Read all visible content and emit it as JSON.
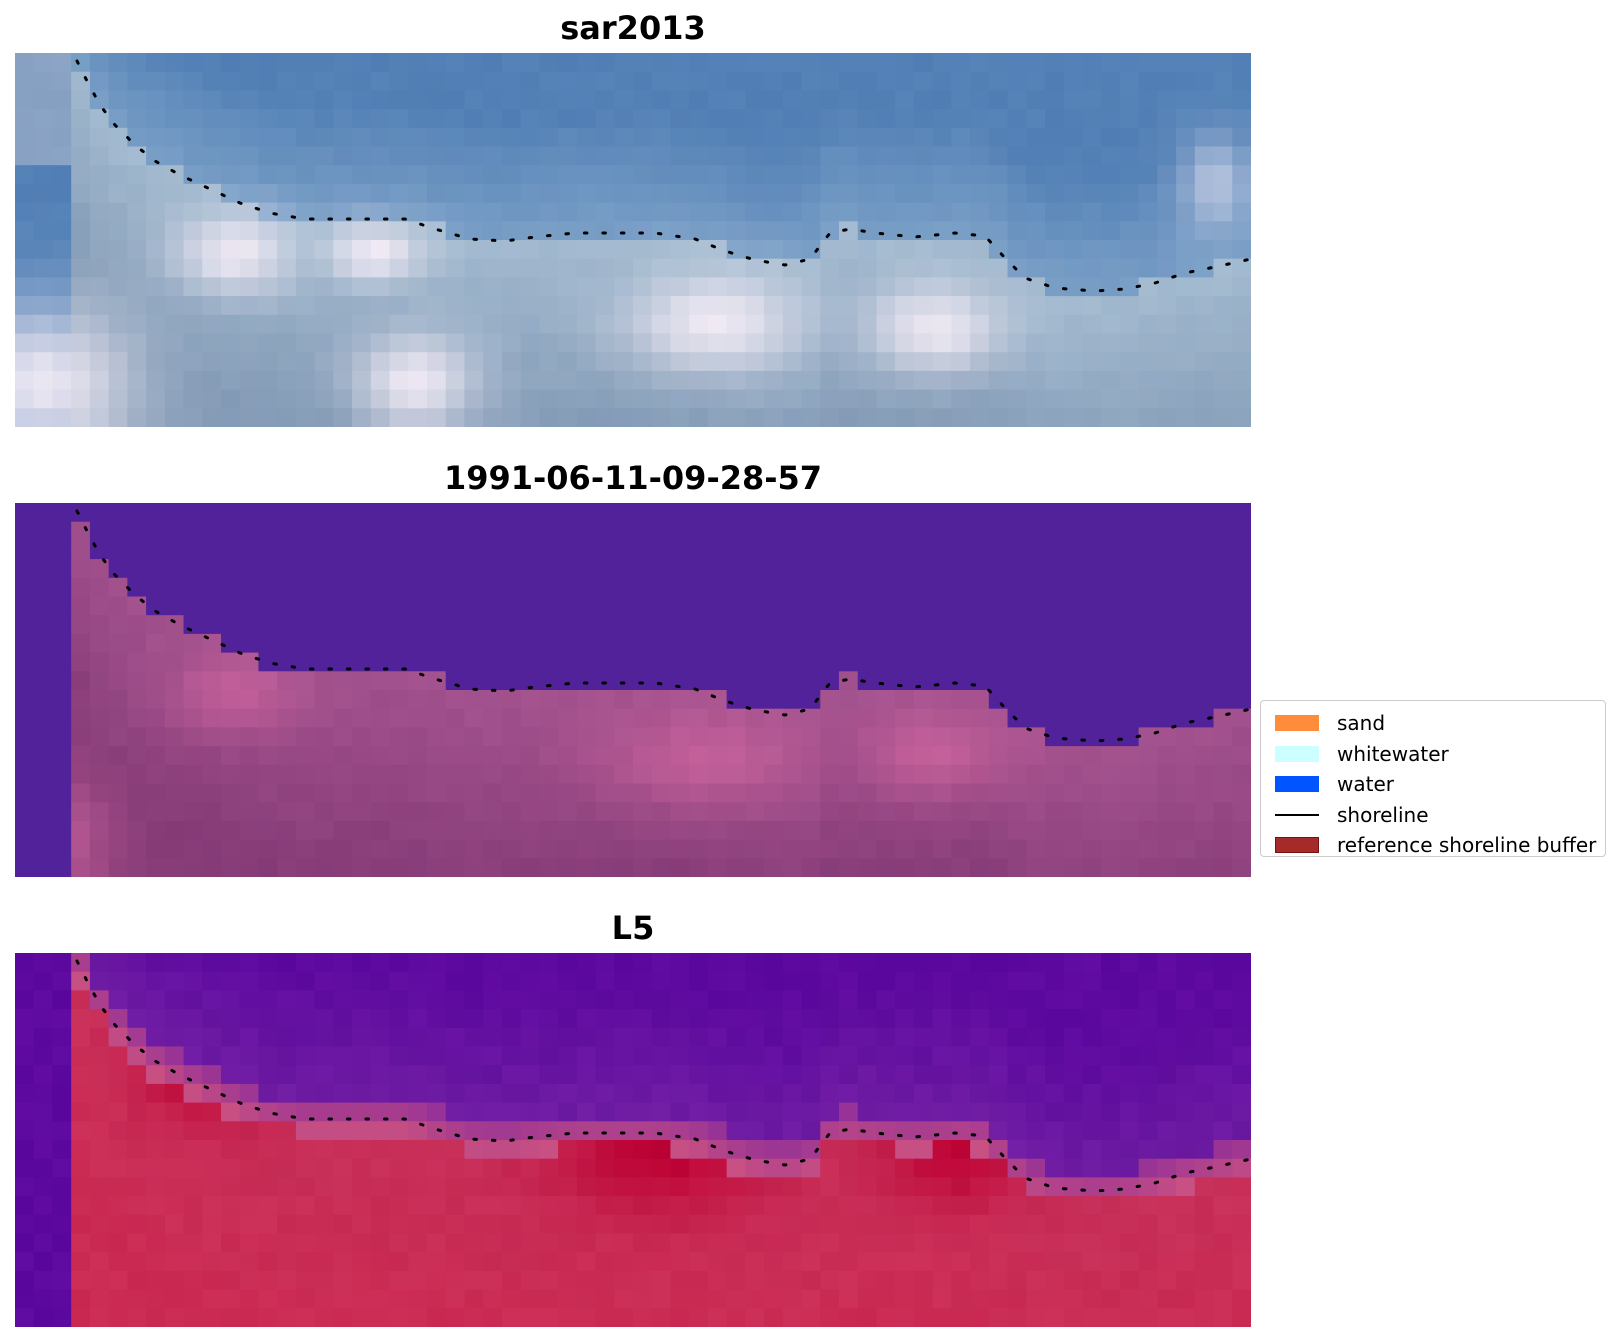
{
  "panels": [
    {
      "title": "sar2013",
      "colormap": "rgb"
    },
    {
      "title": "1991-06-11-09-28-57",
      "colormap": "classified"
    },
    {
      "title": "L5",
      "colormap": "index"
    }
  ],
  "legend": {
    "items": [
      {
        "label": "sand",
        "kind": "patch",
        "color": "#ff8c3a"
      },
      {
        "label": "whitewater",
        "kind": "patch",
        "color": "#ccffff"
      },
      {
        "label": "water",
        "kind": "patch",
        "color": "#0055ff"
      },
      {
        "label": "shoreline",
        "kind": "line",
        "color": "#000000"
      },
      {
        "label": "reference shoreline buffer",
        "kind": "patch",
        "color": "#a52a2a",
        "edge": "#7a1010"
      }
    ]
  },
  "colors": {
    "water_class": "#52229a",
    "rgb_water": "#4f7fb5",
    "rgb_land": "#c6d4e2",
    "index_water": "#5c0a9c",
    "index_land": "#c01c48",
    "classified_land": "#9c4a86",
    "shoreline_dots": "#000000"
  }
}
